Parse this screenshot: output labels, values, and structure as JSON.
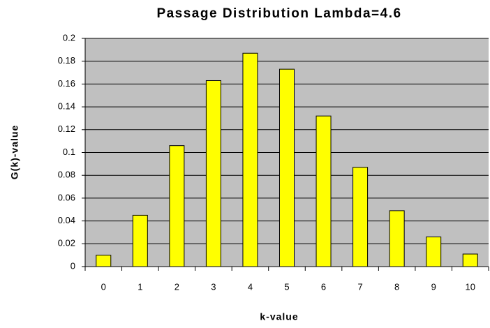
{
  "chart_data": {
    "type": "bar",
    "title": "Passage Distribution Lambda=4.6",
    "x_label": "k-value",
    "y_label": "G(k)-value",
    "categories": [
      "0",
      "1",
      "2",
      "3",
      "4",
      "5",
      "6",
      "7",
      "8",
      "9",
      "10"
    ],
    "values": [
      0.01,
      0.045,
      0.106,
      0.163,
      0.187,
      0.173,
      0.132,
      0.087,
      0.049,
      0.026,
      0.011
    ],
    "color": "#ffff00",
    "ylim": [
      0,
      0.2
    ],
    "yticks": [
      0,
      0.02,
      0.04,
      0.06,
      0.08,
      0.1,
      0.12,
      0.14,
      0.16,
      0.18,
      0.2
    ],
    "grid": true
  }
}
